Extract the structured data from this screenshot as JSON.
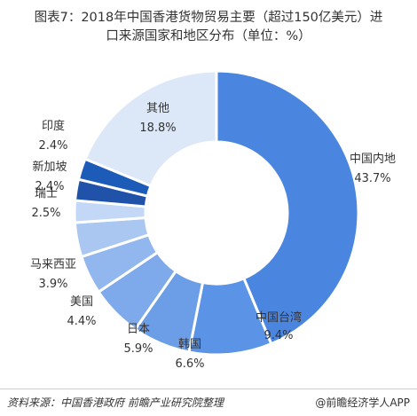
{
  "title": {
    "line1": "图表7：2018年中国香港货物贸易主要（超过150亿美元）进",
    "line2": "口来源国家和地区分布（单位：%）"
  },
  "chart_data": {
    "type": "pie",
    "donut": true,
    "unit": "%",
    "categories": [
      "中国内地",
      "中国台湾",
      "韩国",
      "日本",
      "美国",
      "马来西亚",
      "瑞士",
      "新加坡",
      "印度",
      "其他"
    ],
    "values": [
      43.7,
      9.4,
      6.6,
      5.9,
      4.4,
      3.9,
      2.5,
      2.4,
      2.4,
      18.8
    ],
    "value_labels": [
      "43.7%",
      "9.4%",
      "6.6%",
      "5.9%",
      "4.4%",
      "3.9%",
      "2.5%",
      "2.4%",
      "2.4%",
      "18.8%"
    ],
    "colors": [
      "#4a86e0",
      "#5b94e6",
      "#6c9ee8",
      "#7ea9ea",
      "#92b7ee",
      "#aac7f2",
      "#c2d8f6",
      "#1f52a8",
      "#1d5bb8",
      "#dce8f8"
    ],
    "start": "12 o'clock",
    "direction": "clockwise",
    "legend": "none"
  },
  "footer": {
    "source": "资料来源：中国香港政府  前瞻产业研究院整理",
    "credit": "@前瞻经济学人APP"
  }
}
